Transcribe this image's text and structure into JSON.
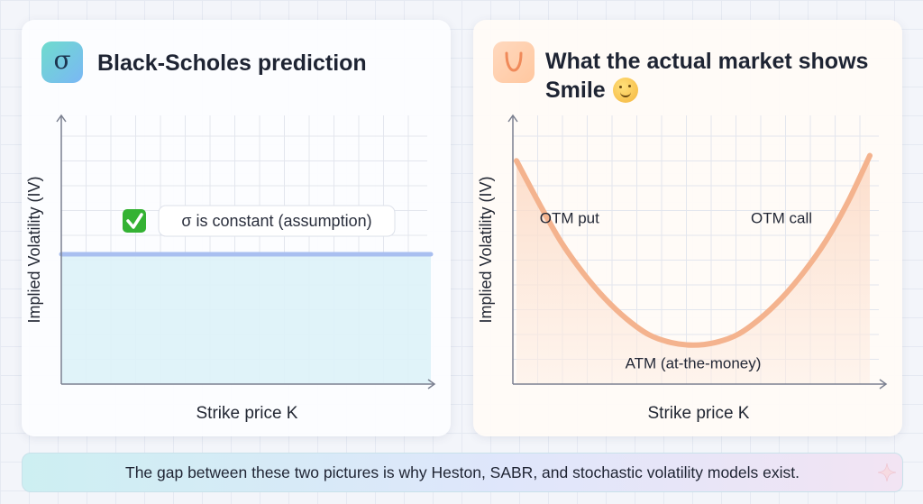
{
  "left_panel": {
    "icon": "sigma-icon",
    "icon_text": "σ",
    "title": "Black-Scholes prediction",
    "callout_icon": "check-mark-icon",
    "callout": "σ is constant (assumption)",
    "chart_data": {
      "type": "line",
      "title": "",
      "xlabel": "Strike price K",
      "ylabel": "Implied Volatility (IV)",
      "x": [
        0,
        1
      ],
      "series": [
        {
          "values": [
            0.5,
            0.5
          ]
        }
      ],
      "ylim": [
        0,
        1
      ],
      "xlim": [
        0,
        1
      ],
      "grid": true,
      "fill_below": true,
      "line_color": "#a9bff0",
      "fill_color": "#ddf2f8"
    }
  },
  "right_panel": {
    "icon": "smile-curve-icon",
    "icon_text": "U",
    "title_line1": "What the actual market shows",
    "title_line2": "Smile",
    "emoji": "smiling-face-emoji",
    "chart_data": {
      "type": "line",
      "title": "",
      "xlabel": "Strike price K",
      "ylabel": "Implied Volatility (IV)",
      "x": [
        0.0,
        0.0625,
        0.125,
        0.1875,
        0.25,
        0.3125,
        0.375,
        0.4375,
        0.5,
        0.5625,
        0.625,
        0.6875,
        0.75,
        0.8125,
        0.875,
        0.9375,
        1.0
      ],
      "series": [
        {
          "values": [
            0.86,
            0.7,
            0.55,
            0.43,
            0.33,
            0.25,
            0.19,
            0.16,
            0.15,
            0.16,
            0.19,
            0.25,
            0.33,
            0.43,
            0.55,
            0.7,
            0.88
          ]
        }
      ],
      "ylim": [
        0,
        1
      ],
      "xlim": [
        0,
        1
      ],
      "grid": true,
      "fill_below": true,
      "line_color": "#f4b38e",
      "fill_color": "#fde3d3",
      "annotations": [
        {
          "text": "OTM put",
          "x": 0.15,
          "y": 0.62
        },
        {
          "text": "OTM call",
          "x": 0.75,
          "y": 0.62
        },
        {
          "text": "ATM (at-the-money)",
          "x": 0.5,
          "y": 0.06
        }
      ]
    }
  },
  "footer": {
    "text": "The gap between these two pictures is why Heston, SABR, and stochastic volatility models exist.",
    "icon": "sparkle-icon"
  }
}
